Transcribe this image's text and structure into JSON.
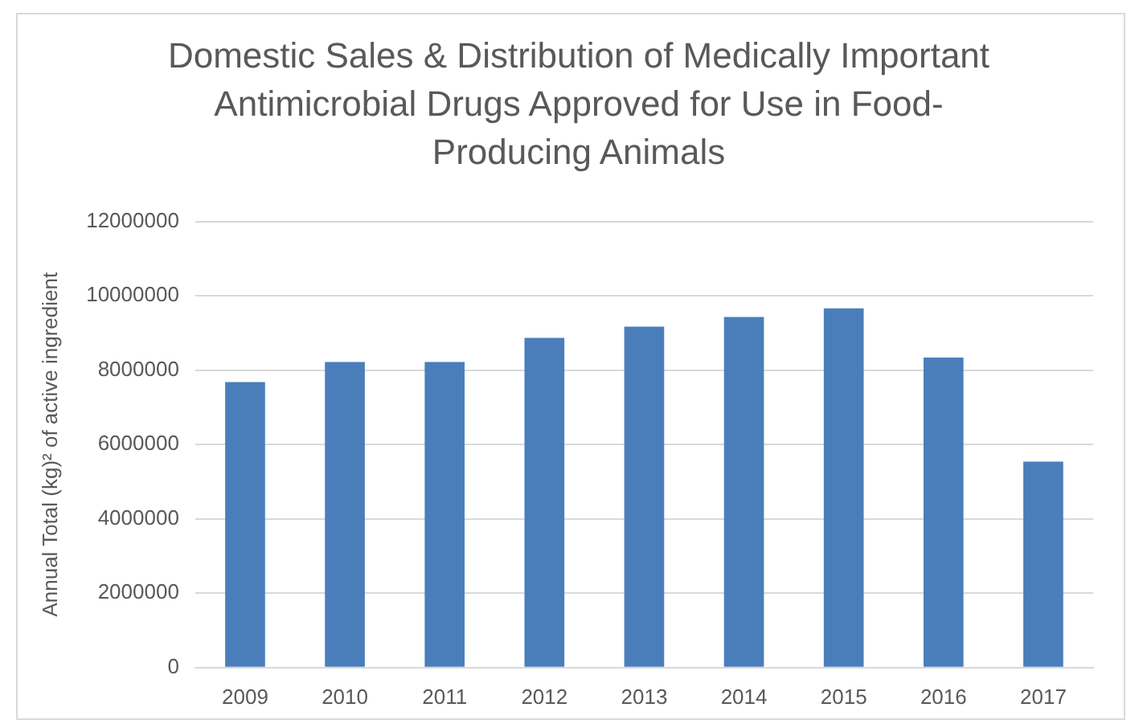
{
  "chart_data": {
    "type": "bar",
    "title": "Domestic Sales & Distribution of Medically Important Antimicrobial Drugs Approved for Use in Food-Producing Animals",
    "ylabel": "Annual Total (kg)² of active ingredient",
    "categories": [
      "2009",
      "2010",
      "2011",
      "2012",
      "2013",
      "2014",
      "2015",
      "2016",
      "2017"
    ],
    "values": [
      7680000,
      8220000,
      8220000,
      8870000,
      9170000,
      9430000,
      9660000,
      8340000,
      5540000
    ],
    "color": "#4a7ebb",
    "ylim": [
      0,
      12000000
    ],
    "yticks": [
      0,
      2000000,
      4000000,
      6000000,
      8000000,
      10000000,
      12000000
    ],
    "grid": "y"
  }
}
